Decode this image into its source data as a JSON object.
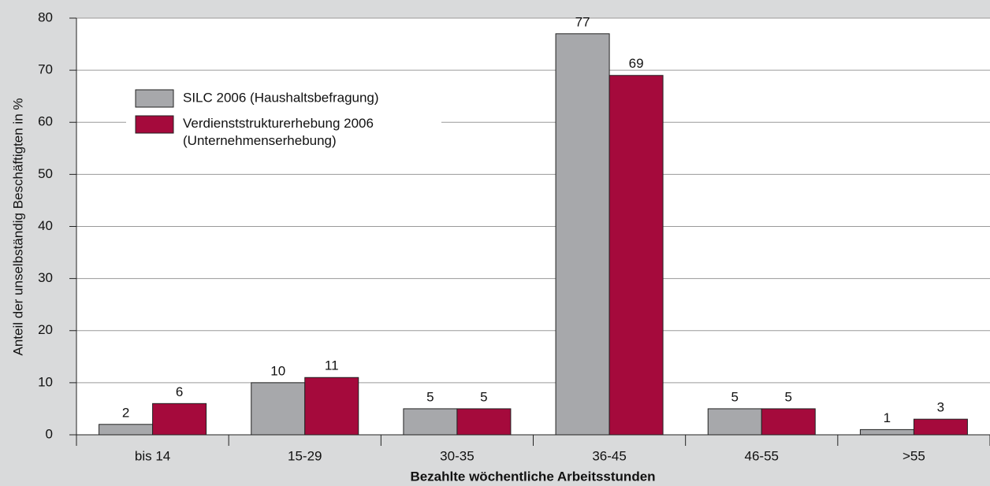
{
  "chart_data": {
    "type": "bar",
    "xlabel": "Bezahlte wöchentliche Arbeitsstunden",
    "ylabel": "Anteil der unselbständig Beschäftigten in %",
    "categories": [
      "bis 14",
      "15-29",
      "30-35",
      "36-45",
      "46-55",
      ">55"
    ],
    "series": [
      {
        "name": "SILC 2006 (Haushaltsbefragung)",
        "color": "#a7a8ab",
        "values": [
          2,
          10,
          5,
          77,
          5,
          1
        ]
      },
      {
        "name": "Verdienststrukturerhebung 2006 (Unternehmenserhebung)",
        "color": "#a50a3c",
        "values": [
          6,
          11,
          5,
          69,
          5,
          3
        ]
      }
    ],
    "ylim": [
      0,
      80
    ],
    "yticks": [
      0,
      10,
      20,
      30,
      40,
      50,
      60,
      70,
      80
    ],
    "grid": true,
    "legend": "upper left"
  }
}
